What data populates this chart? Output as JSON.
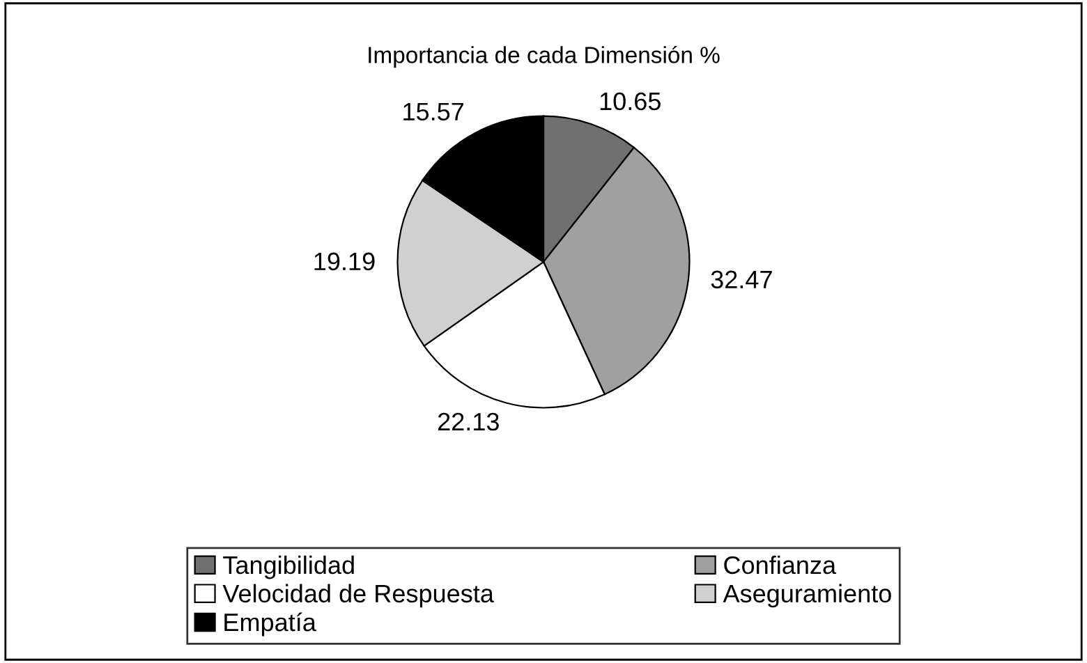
{
  "chart_data": {
    "type": "pie",
    "title": "Importancia de cada Dimensión %",
    "categories": [
      "Tangibilidad",
      "Confianza",
      "Velocidad de Respuesta",
      "Aseguramiento",
      "Empatía"
    ],
    "values": [
      10.65,
      32.47,
      22.13,
      19.19,
      15.57
    ],
    "colors": [
      "#707070",
      "#a0a0a0",
      "#ffffff",
      "#d0d0d0",
      "#000000"
    ],
    "data_labels": true,
    "legend": "bottom"
  }
}
